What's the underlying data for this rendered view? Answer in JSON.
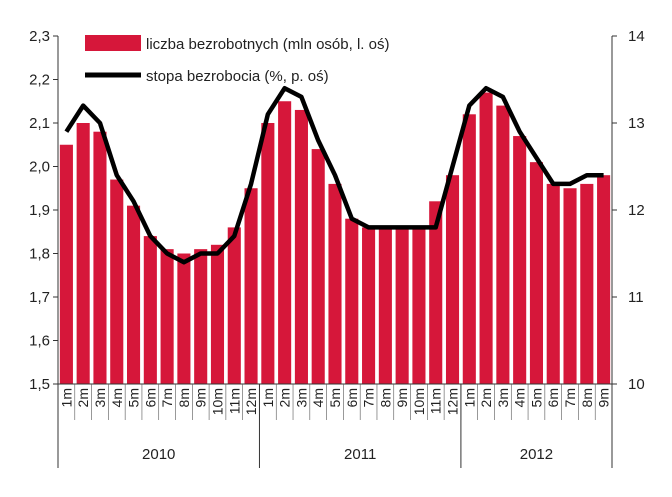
{
  "chart_data": {
    "type": "bar+line",
    "title": "",
    "categories": [
      "1m",
      "2m",
      "3m",
      "4m",
      "5m",
      "6m",
      "7m",
      "8m",
      "9m",
      "10m",
      "11m",
      "12m",
      "1m",
      "2m",
      "3m",
      "4m",
      "5m",
      "6m",
      "7m",
      "8m",
      "9m",
      "10m",
      "11m",
      "12m",
      "1m",
      "2m",
      "3m",
      "4m",
      "5m",
      "6m",
      "7m",
      "8m",
      "9m"
    ],
    "year_groups": [
      {
        "label": "2010",
        "start": 0,
        "count": 12
      },
      {
        "label": "2011",
        "start": 12,
        "count": 12
      },
      {
        "label": "2012",
        "start": 24,
        "count": 9
      }
    ],
    "series": [
      {
        "name": "liczba bezrobotnych (mln osób, l. oś)",
        "type": "bar",
        "axis": "left",
        "color": "#d6173a",
        "values": [
          2.05,
          2.1,
          2.08,
          1.97,
          1.91,
          1.84,
          1.81,
          1.8,
          1.81,
          1.82,
          1.86,
          1.95,
          2.1,
          2.15,
          2.13,
          2.04,
          1.96,
          1.88,
          1.86,
          1.86,
          1.86,
          1.86,
          1.92,
          1.98,
          2.12,
          2.17,
          2.14,
          2.07,
          2.01,
          1.96,
          1.95,
          1.96,
          1.98
        ]
      },
      {
        "name": "stopa bezrobocia (%, p. oś)",
        "type": "line",
        "axis": "right",
        "color": "#000000",
        "values": [
          12.9,
          13.2,
          13.0,
          12.4,
          12.1,
          11.7,
          11.5,
          11.4,
          11.5,
          11.5,
          11.7,
          12.3,
          13.1,
          13.4,
          13.3,
          12.8,
          12.4,
          11.9,
          11.8,
          11.8,
          11.8,
          11.8,
          11.8,
          12.5,
          13.2,
          13.4,
          13.3,
          12.9,
          12.6,
          12.3,
          12.3,
          12.4,
          12.4
        ]
      }
    ],
    "y_left": {
      "min": 1.5,
      "max": 2.3,
      "step": 0.1,
      "ticks": [
        "1,5",
        "1,6",
        "1,7",
        "1,8",
        "1,9",
        "2,0",
        "2,1",
        "2,2",
        "2,3"
      ]
    },
    "y_right": {
      "min": 10,
      "max": 14,
      "step": 1,
      "ticks": [
        "10",
        "11",
        "12",
        "13",
        "14"
      ]
    },
    "grid": false,
    "legend_position": "top-left"
  }
}
